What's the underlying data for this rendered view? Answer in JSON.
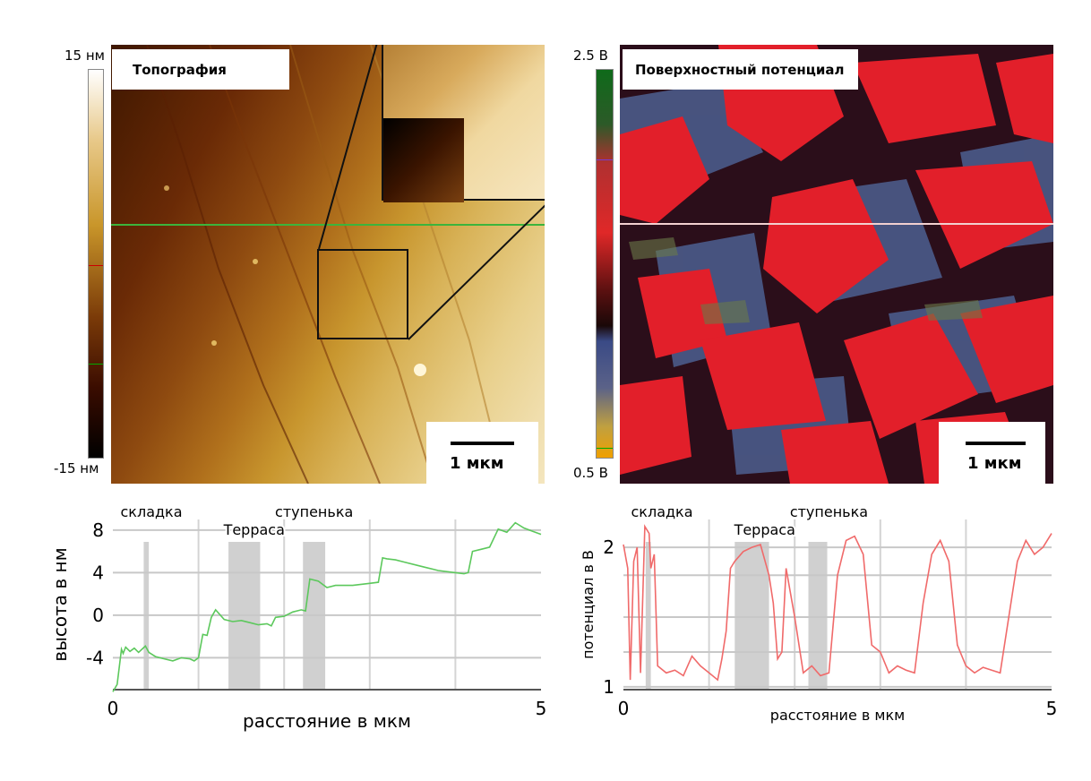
{
  "topography": {
    "title": "Топография",
    "colorbar_max": "15 нм",
    "colorbar_min": "-15 нм",
    "scalebar": "1 мкм"
  },
  "potential": {
    "title": "Поверхностный потенциал",
    "colorbar_max": "2.5 В",
    "colorbar_min": "0.5 В",
    "scalebar": "1 мкм"
  },
  "colors": {
    "topo_profile": "#5cc85c",
    "potential_profile": "#f06a6a",
    "shade": "#c8c8c8",
    "map_red": "#e0242c",
    "map_blue": "#4a5a86"
  },
  "chart_data": [
    {
      "type": "line",
      "title": "",
      "xlabel": "расстояние в мкм",
      "ylabel": "высота в нм",
      "xlim": [
        0,
        5
      ],
      "ylim": [
        -7,
        9
      ],
      "xticks": [
        "0",
        "5"
      ],
      "yticks": [
        "8",
        "4",
        "0",
        "-4"
      ],
      "grid": true,
      "annotations": [
        {
          "text": "складка",
          "x": 0.45
        },
        {
          "text": "Терраса",
          "x": 1.65
        },
        {
          "text": "ступенька",
          "x": 2.35
        }
      ],
      "shaded_regions": [
        [
          0.36,
          0.42
        ],
        [
          1.35,
          1.72
        ],
        [
          2.22,
          2.48
        ]
      ],
      "x": [
        0.0,
        0.05,
        0.1,
        0.12,
        0.15,
        0.2,
        0.25,
        0.3,
        0.38,
        0.42,
        0.5,
        0.6,
        0.7,
        0.8,
        0.9,
        0.95,
        1.0,
        1.05,
        1.1,
        1.15,
        1.2,
        1.3,
        1.4,
        1.5,
        1.6,
        1.7,
        1.8,
        1.85,
        1.9,
        2.0,
        2.1,
        2.15,
        2.2,
        2.25,
        2.3,
        2.4,
        2.5,
        2.6,
        2.8,
        3.0,
        3.1,
        3.15,
        3.2,
        3.3,
        3.4,
        3.6,
        3.8,
        4.0,
        4.1,
        4.15,
        4.2,
        4.3,
        4.4,
        4.5,
        4.6,
        4.7,
        4.8,
        4.9,
        5.0
      ],
      "series": [
        {
          "values": [
            -7.2,
            -6.5,
            -3.2,
            -3.6,
            -3.0,
            -3.4,
            -3.1,
            -3.5,
            -2.9,
            -3.5,
            -3.9,
            -4.1,
            -4.3,
            -4.0,
            -4.1,
            -4.3,
            -4.0,
            -1.8,
            -1.9,
            -0.2,
            0.5,
            -0.4,
            -0.6,
            -0.5,
            -0.7,
            -0.9,
            -0.8,
            -1.0,
            -0.2,
            -0.1,
            0.3,
            0.4,
            0.5,
            0.4,
            3.4,
            3.2,
            2.6,
            2.8,
            2.8,
            3.0,
            3.1,
            5.4,
            5.3,
            5.2,
            5.0,
            4.6,
            4.2,
            4.0,
            3.9,
            4.0,
            6.0,
            6.2,
            6.4,
            8.1,
            7.8,
            8.7,
            8.2,
            7.9,
            7.6
          ]
        }
      ]
    },
    {
      "type": "line",
      "title": "",
      "xlabel": "расстояние в мкм",
      "ylabel": "потенциал в В",
      "xlim": [
        0,
        5
      ],
      "ylim": [
        0.98,
        2.2
      ],
      "xticks": [
        "0",
        "5"
      ],
      "yticks": [
        "2",
        "1"
      ],
      "grid": true,
      "annotations": [
        {
          "text": "складка",
          "x": 0.45
        },
        {
          "text": "Терраса",
          "x": 1.65
        },
        {
          "text": "ступенька",
          "x": 2.4
        }
      ],
      "shaded_regions": [
        [
          0.26,
          0.32
        ],
        [
          1.3,
          1.7
        ],
        [
          2.16,
          2.38
        ]
      ],
      "x": [
        0.0,
        0.05,
        0.08,
        0.12,
        0.16,
        0.2,
        0.25,
        0.3,
        0.32,
        0.36,
        0.4,
        0.5,
        0.6,
        0.7,
        0.8,
        0.9,
        1.0,
        1.1,
        1.15,
        1.2,
        1.25,
        1.3,
        1.4,
        1.5,
        1.6,
        1.7,
        1.75,
        1.8,
        1.85,
        1.9,
        2.0,
        2.1,
        2.2,
        2.3,
        2.4,
        2.5,
        2.6,
        2.7,
        2.8,
        2.9,
        3.0,
        3.1,
        3.2,
        3.3,
        3.4,
        3.5,
        3.6,
        3.7,
        3.8,
        3.9,
        4.0,
        4.1,
        4.2,
        4.3,
        4.4,
        4.5,
        4.6,
        4.7,
        4.8,
        4.9,
        5.0
      ],
      "series": [
        {
          "values": [
            2.02,
            1.85,
            1.05,
            1.9,
            2.0,
            1.1,
            2.15,
            2.1,
            1.85,
            1.95,
            1.15,
            1.1,
            1.12,
            1.08,
            1.22,
            1.15,
            1.1,
            1.05,
            1.2,
            1.4,
            1.85,
            1.9,
            1.97,
            2.0,
            2.02,
            1.8,
            1.6,
            1.2,
            1.25,
            1.85,
            1.5,
            1.1,
            1.15,
            1.08,
            1.1,
            1.8,
            2.05,
            2.08,
            1.95,
            1.3,
            1.25,
            1.1,
            1.15,
            1.12,
            1.1,
            1.6,
            1.95,
            2.05,
            1.9,
            1.3,
            1.15,
            1.1,
            1.14,
            1.12,
            1.1,
            1.5,
            1.9,
            2.05,
            1.95,
            2.0,
            2.1
          ]
        }
      ]
    }
  ]
}
